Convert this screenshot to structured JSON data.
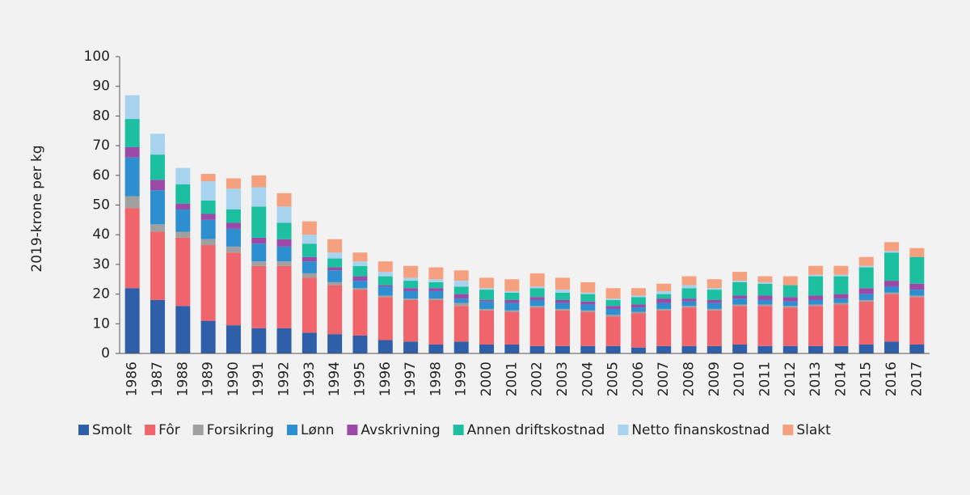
{
  "chart_data": {
    "type": "stacked_bar",
    "y_label": "2019-krone per kg",
    "categories": [
      "1986",
      "1987",
      "1988",
      "1989",
      "1990",
      "1991",
      "1992",
      "1993",
      "1994",
      "1995",
      "1996",
      "1997",
      "1998",
      "1999",
      "2000",
      "2001",
      "2002",
      "2003",
      "2004",
      "2005",
      "2006",
      "2007",
      "2008",
      "2009",
      "2010",
      "2011",
      "2012",
      "2013",
      "2014",
      "2015",
      "2016",
      "2017"
    ],
    "ylim": [
      0,
      100
    ],
    "yticks": [
      0,
      10,
      20,
      30,
      40,
      50,
      60,
      70,
      80,
      90,
      100
    ],
    "grid": false,
    "legend": "bottom",
    "series": [
      {
        "name": "Smolt",
        "color": "#2e5fa8",
        "values": [
          22,
          18,
          16,
          11,
          9.5,
          8.5,
          8.5,
          7,
          6.5,
          6,
          4.5,
          4,
          3,
          4,
          3,
          3,
          2.5,
          2.5,
          2.5,
          2.5,
          2,
          2.5,
          2.5,
          2.5,
          3,
          2.5,
          2.5,
          2.5,
          2.5,
          3,
          4,
          3
        ]
      },
      {
        "name": "Fôr",
        "color": "#f0646c",
        "values": [
          27,
          23,
          23,
          25.5,
          24.5,
          21,
          21,
          18.5,
          16.5,
          15.5,
          14.5,
          14,
          15,
          12,
          11.5,
          11,
          13,
          12,
          11.5,
          10,
          11.5,
          12,
          13,
          12,
          13,
          13.5,
          13,
          13.5,
          14,
          14.5,
          16,
          16
        ]
      },
      {
        "name": "Forsikring",
        "color": "#a0a0a0",
        "values": [
          4,
          2.5,
          2,
          2,
          2,
          1.5,
          1.5,
          1.5,
          1,
          0.5,
          0.5,
          0.5,
          0.5,
          1,
          0.5,
          0.5,
          0.5,
          0.5,
          0.5,
          0.5,
          0.5,
          0.5,
          0.5,
          0.5,
          0.5,
          0.5,
          0.5,
          0.5,
          0.5,
          0.5,
          0.5,
          0.5
        ]
      },
      {
        "name": "Lønn",
        "color": "#2e8fd0",
        "values": [
          13,
          11.5,
          7.5,
          6.5,
          6,
          6,
          5,
          4,
          4,
          2.5,
          3,
          2.5,
          2.5,
          1.5,
          2.5,
          2.5,
          2,
          2,
          2,
          2,
          1.5,
          2,
          1.5,
          2,
          2,
          1.5,
          1.5,
          1.5,
          1.5,
          2,
          2,
          2
        ]
      },
      {
        "name": "Avskrivning",
        "color": "#9b4aa8",
        "values": [
          3.5,
          3.5,
          2,
          2,
          2,
          2,
          2.5,
          1.5,
          1,
          1.5,
          0.5,
          1,
          1,
          1.5,
          0.5,
          1,
          1,
          1,
          1,
          1,
          1,
          1.5,
          1,
          1,
          1,
          1.5,
          1.5,
          1.5,
          1.5,
          2,
          2,
          2
        ]
      },
      {
        "name": "Annen driftskostnad",
        "color": "#1cbfa0",
        "values": [
          9.5,
          8.5,
          6.5,
          4.5,
          4.5,
          10.5,
          5.5,
          4.5,
          3,
          3.5,
          3,
          2.5,
          2,
          2.5,
          3.5,
          2.5,
          3,
          2.5,
          2.5,
          2,
          2.5,
          1.5,
          3.5,
          3.5,
          4.5,
          4,
          4,
          6.5,
          6,
          7,
          9.5,
          9
        ]
      },
      {
        "name": "Netto finanskostnad",
        "color": "#a8d3ee",
        "values": [
          8,
          7,
          5.5,
          6.5,
          7,
          6.5,
          5.5,
          3,
          2,
          1.5,
          1.5,
          1,
          1,
          2,
          0.5,
          0.5,
          0.5,
          1,
          0.5,
          0.5,
          0.5,
          1,
          1,
          0.5,
          0.5,
          0.5,
          0,
          0.5,
          0.5,
          0.5,
          0.5,
          0
        ]
      },
      {
        "name": "Slakt",
        "color": "#f5a07e",
        "values": [
          0,
          0,
          0,
          2.5,
          3.5,
          4,
          4.5,
          4.5,
          4.5,
          3,
          3.5,
          4,
          4,
          3.5,
          3.5,
          4,
          4.5,
          4,
          3.5,
          3.5,
          2.5,
          2.5,
          3,
          3,
          3,
          2,
          3,
          3,
          3,
          3,
          3,
          3
        ]
      }
    ]
  }
}
